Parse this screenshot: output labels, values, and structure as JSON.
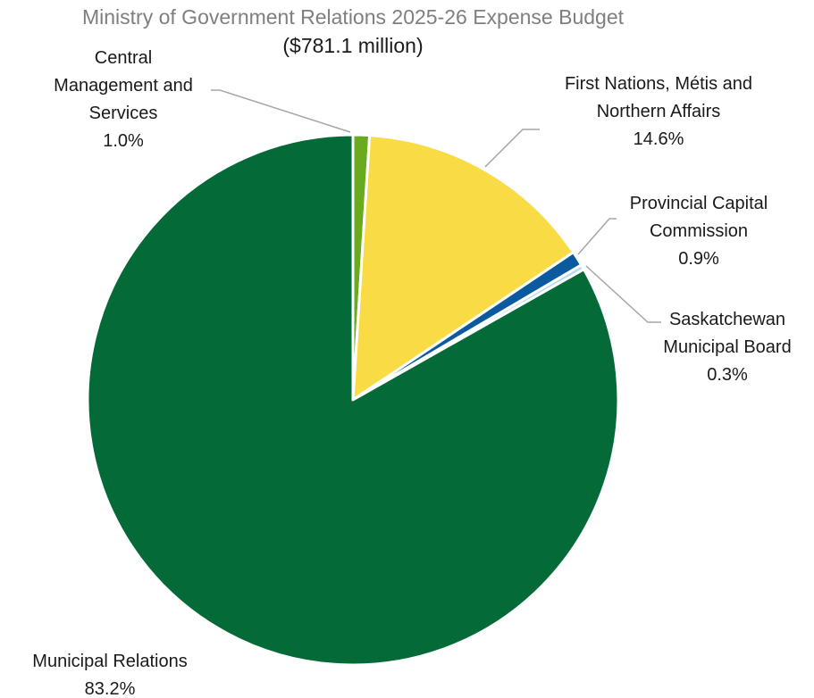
{
  "chart_data": {
    "type": "pie",
    "title": "Ministry of Government Relations 2025-26 Expense Budget",
    "subtitle": "($781.1 million)",
    "unit": "%",
    "start_angle_deg": 0,
    "direction": "clockwise",
    "slices": [
      {
        "label_lines": [
          "Central",
          "Management and",
          "Services"
        ],
        "value": 1.0,
        "value_label": "1.0%",
        "color": "#6aaa1e"
      },
      {
        "label_lines": [
          "First Nations, Métis and",
          "Northern Affairs"
        ],
        "value": 14.6,
        "value_label": "14.6%",
        "color": "#f9dc45"
      },
      {
        "label_lines": [
          "Provincial Capital",
          "Commission"
        ],
        "value": 0.9,
        "value_label": "0.9%",
        "color": "#0b5aa0"
      },
      {
        "label_lines": [
          "Saskatchewan",
          "Municipal Board"
        ],
        "value": 0.3,
        "value_label": "0.3%",
        "color": "#b8d9ee"
      },
      {
        "label_lines": [
          "Municipal Relations"
        ],
        "value": 83.2,
        "value_label": "83.2%",
        "color": "#046a38"
      }
    ],
    "title_color": "#7f7f7f",
    "leader_color": "#a6a6a6"
  }
}
